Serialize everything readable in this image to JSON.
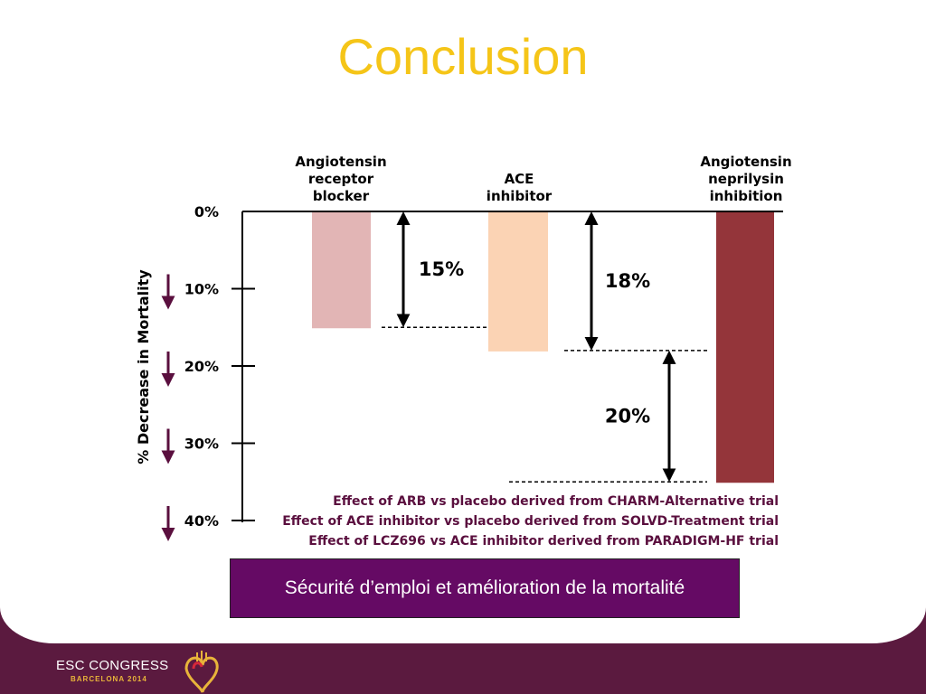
{
  "slide": {
    "title": "Conclusion",
    "caption": "Sécurité d’emploi et amélioration de la mortalité"
  },
  "footer": {
    "event_name": "ESC CONGRESS",
    "event_sub": "BARCELONA 2014"
  },
  "colors": {
    "title": "#f5c518",
    "arb": "#e2b5b5",
    "ace": "#fbd3b4",
    "arni": "#94353a",
    "note_text": "#5a0f3e",
    "caption_bg": "#650a64",
    "footer_bg": "#5b1a3f"
  },
  "chart_data": {
    "type": "bar",
    "ylabel": "% Decrease in Mortality",
    "ylim": [
      0,
      40
    ],
    "yticks": [
      "0%",
      "10%",
      "20%",
      "30%",
      "40%"
    ],
    "ytick_values": [
      0,
      10,
      20,
      30,
      40
    ],
    "categories": [
      "Angiotensin receptor blocker",
      "ACE inhibitor",
      "Angiotensin neprilysin inhibition"
    ],
    "category_label_lines": [
      [
        "Angiotensin",
        "receptor",
        "blocker"
      ],
      [
        "ACE",
        "inhibitor"
      ],
      [
        "Angiotensin",
        "neprilysin",
        "inhibition"
      ]
    ],
    "values": [
      15,
      18,
      35
    ],
    "annotations": [
      {
        "label": "15%",
        "from": 0,
        "to": 15
      },
      {
        "label": "18%",
        "from": 0,
        "to": 18
      },
      {
        "label": "20%",
        "from": 18,
        "to": 35
      }
    ],
    "notes": [
      "Effect of ARB vs placebo derived from CHARM-Alternative trial",
      "Effect of ACE inhibitor vs placebo derived from SOLVD-Treatment trial",
      "Effect of LCZ696 vs ACE inhibitor derived from PARADIGM-HF trial"
    ]
  }
}
